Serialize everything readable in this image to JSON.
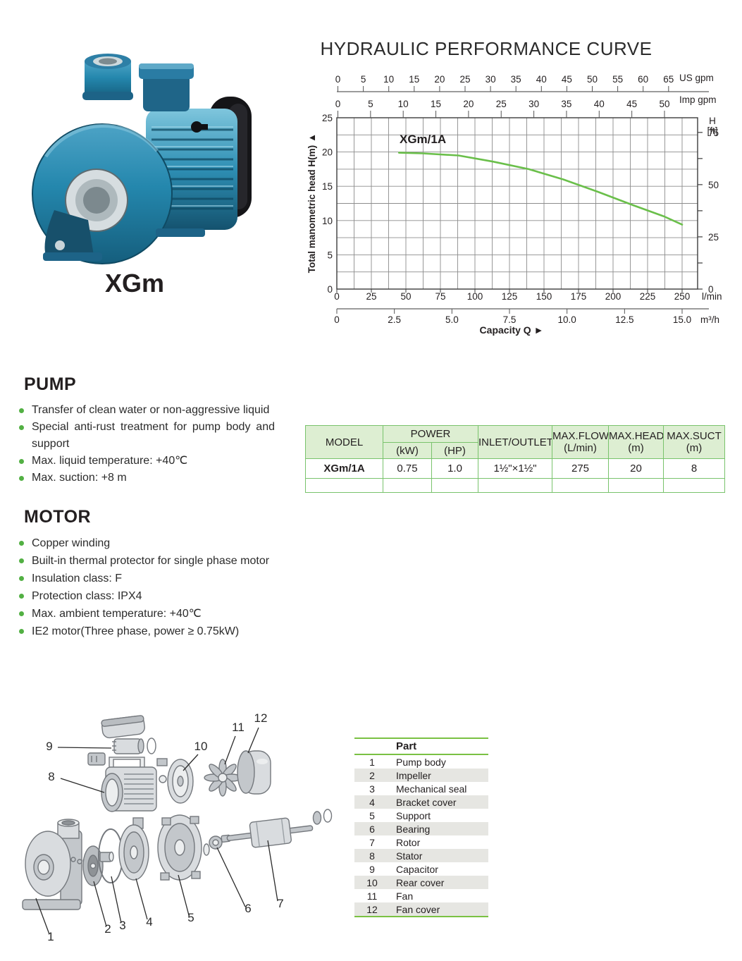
{
  "product": {
    "caption": "XGm"
  },
  "chart_data": {
    "type": "line",
    "title": "HYDRAULIC PERFORMANCE CURVE",
    "xlabel": "Capacity Q",
    "ylabel": "Total manometric head H(m)",
    "x_unit_primary": "l/min",
    "x_ticks_lmin": [
      0,
      25,
      50,
      75,
      100,
      125,
      150,
      175,
      200,
      225,
      250
    ],
    "x_axis_m3h": {
      "unit": "m³/h",
      "ticks": [
        "0",
        "2.5",
        "5.0",
        "7.5",
        "10.0",
        "12.5",
        "15.0"
      ]
    },
    "top_axes": [
      {
        "unit": "US gpm",
        "ticks": [
          0,
          5,
          10,
          15,
          20,
          25,
          30,
          35,
          40,
          45,
          50,
          55,
          60,
          65
        ]
      },
      {
        "unit": "Imp gpm",
        "ticks": [
          0,
          5,
          10,
          15,
          20,
          25,
          30,
          35,
          40,
          45,
          50
        ]
      }
    ],
    "right_axis": {
      "unit_lines": [
        "H",
        "[ft]"
      ],
      "ticks": [
        75,
        50,
        25,
        0
      ],
      "minor_step_ft": 12.5
    },
    "y_ticks": [
      0,
      5,
      10,
      15,
      20,
      25
    ],
    "ylim": [
      0,
      25
    ],
    "xlim_lmin": [
      0,
      261
    ],
    "grid": {
      "x_step_lmin": 12.5,
      "y_step_m": 2.5
    },
    "series": [
      {
        "name": "XGm/1A",
        "color": "#6abf4a",
        "points_lmin_m": [
          [
            45,
            19.9
          ],
          [
            62,
            19.8
          ],
          [
            88,
            19.5
          ],
          [
            113,
            18.6
          ],
          [
            139,
            17.5
          ],
          [
            164,
            16.0
          ],
          [
            189,
            14.2
          ],
          [
            215,
            12.2
          ],
          [
            237,
            10.6
          ],
          [
            250,
            9.4
          ]
        ]
      }
    ]
  },
  "pump_section": {
    "heading": "PUMP",
    "bullets": [
      "Transfer of clean water or non-aggressive liquid",
      "Special anti-rust treatment for pump body and support",
      "Max. liquid temperature: +40℃",
      "Max. suction: +8 m"
    ]
  },
  "motor_section": {
    "heading": "MOTOR",
    "bullets": [
      "Copper winding",
      "Built-in thermal protector for single phase motor",
      "Insulation class: F",
      "Protection class: IPX4",
      "Max. ambient temperature: +40℃",
      "IE2 motor(Three phase, power ≥ 0.75kW)"
    ]
  },
  "spec_table": {
    "headers": {
      "model": "MODEL",
      "power": "POWER",
      "kw": "(kW)",
      "hp": "(HP)",
      "inlet": "INLET/OUTLET",
      "flow1": "MAX.FLOW",
      "flow2": "(L/min)",
      "head1": "MAX.HEAD",
      "head2": "(m)",
      "suct1": "MAX.SUCT",
      "suct2": "(m)"
    },
    "row": [
      "XGm/1A",
      "0.75",
      "1.0",
      "1½\"×1½\"",
      "275",
      "20",
      "8"
    ]
  },
  "exploded": {
    "callouts": [
      "9",
      "8",
      "10",
      "11",
      "12",
      "1",
      "2",
      "3",
      "4",
      "5",
      "6",
      "7"
    ]
  },
  "parts_table": {
    "header_no": "",
    "header_part": "Part",
    "rows": [
      [
        "1",
        "Pump body"
      ],
      [
        "2",
        "Impeller"
      ],
      [
        "3",
        "Mechanical seal"
      ],
      [
        "4",
        "Bracket cover"
      ],
      [
        "5",
        "Support"
      ],
      [
        "6",
        "Bearing"
      ],
      [
        "7",
        "Rotor"
      ],
      [
        "8",
        "Stator"
      ],
      [
        "9",
        "Capacitor"
      ],
      [
        "10",
        "Rear cover"
      ],
      [
        "11",
        "Fan"
      ],
      [
        "12",
        "Fan cover"
      ]
    ]
  },
  "theme": {
    "text": "#231f20",
    "curve_green": "#6abf4a",
    "table_border_green": "#79c36c",
    "table_header_bg": "#ddeed2",
    "rule_green": "#7ac143",
    "bullet_green": "#52b043",
    "row_alt_gray": "#e6e6e2",
    "grid_gray": "#8c8c8c",
    "pump_blue": "#2487ad"
  }
}
